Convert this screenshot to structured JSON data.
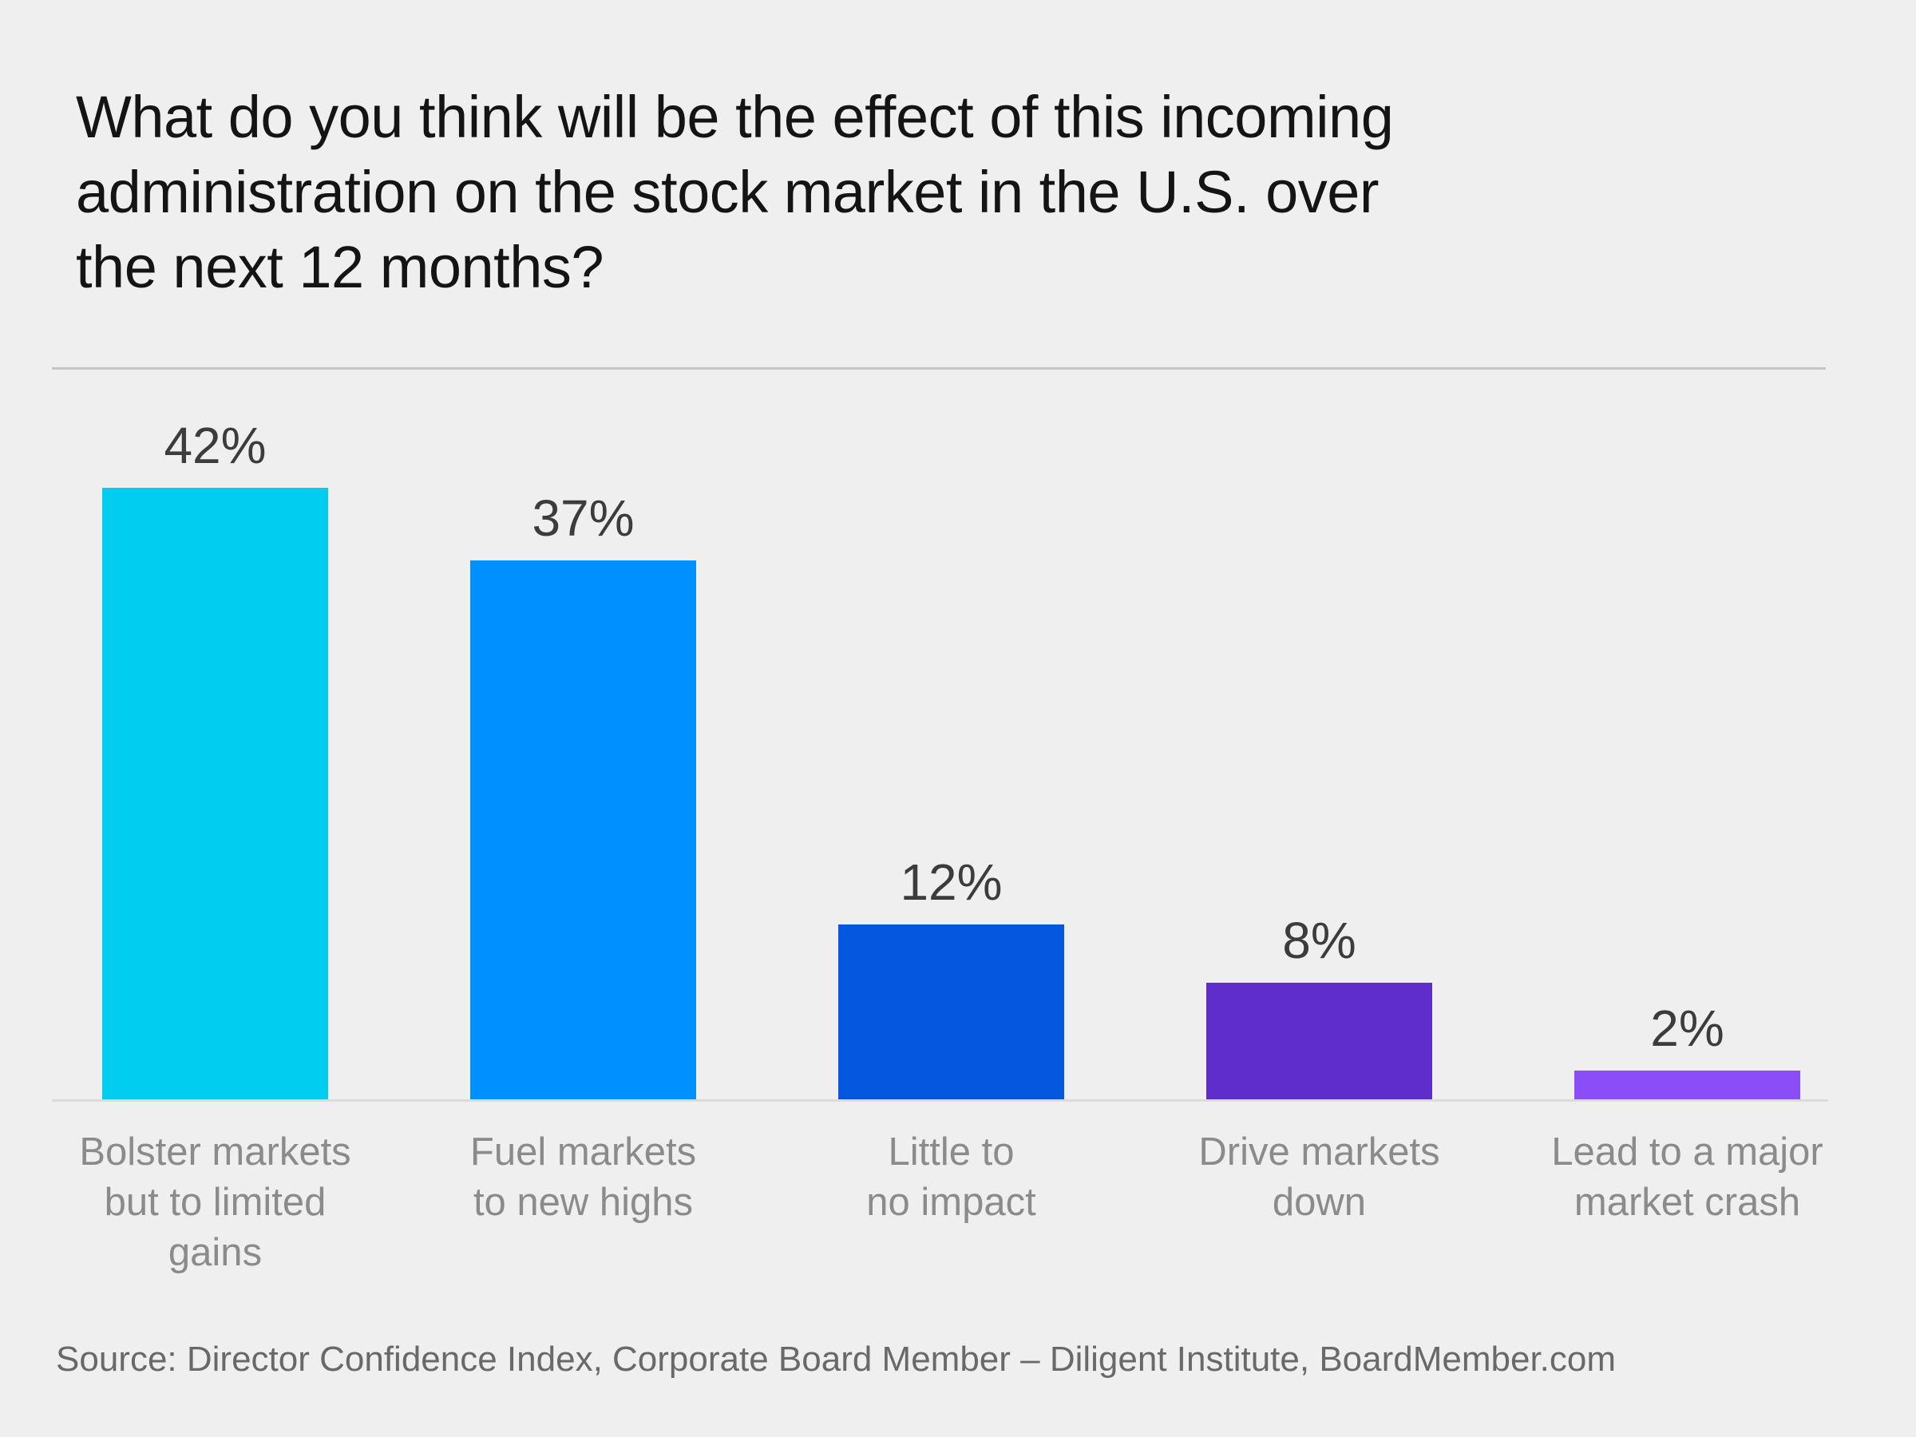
{
  "page": {
    "background": "#F0EFEF"
  },
  "header": {
    "title_lines": [
      "What do you think will be the effect of this incoming",
      "administration on the stock market in the U.S. over",
      "the next 12 months?"
    ]
  },
  "chart_data": {
    "type": "bar",
    "title": "What do you think will be the effect of this incoming administration on the stock market in the U.S. over the next 12 months?",
    "categories": [
      "Bolster markets but to limited gains",
      "Fuel markets to new highs",
      "Little to no impact",
      "Drive markets down",
      "Lead to a major market crash"
    ],
    "category_lines": [
      [
        "Bolster markets",
        "but to limited",
        "gains"
      ],
      [
        "Fuel markets",
        "to new highs"
      ],
      [
        "Little to",
        "no impact"
      ],
      [
        "Drive markets",
        "down"
      ],
      [
        "Lead to a major",
        "market crash"
      ]
    ],
    "values": [
      42,
      37,
      12,
      8,
      2
    ],
    "value_labels": [
      "42%",
      "37%",
      "12%",
      "8%",
      "2%"
    ],
    "bar_colors": [
      "#00CDF0",
      "#0090FF",
      "#0557DF",
      "#5F2DCB",
      "#8A4DF8"
    ],
    "ylim": [
      0,
      42
    ],
    "xlabel": "",
    "ylabel": "",
    "grid": false,
    "legend": false,
    "value_label_position": "above-bars",
    "colors": {
      "background": "#F0EFEF",
      "title_text": "#141414",
      "value_text": "#3C3C3C",
      "category_text": "#8B8B8B",
      "source_text": "#696969",
      "top_divider": "#C6C6C6",
      "baseline": "#DBDBDB"
    }
  },
  "footer": {
    "source": "Source: Director Confidence Index, Corporate Board Member – Diligent Institute, BoardMember.com"
  }
}
